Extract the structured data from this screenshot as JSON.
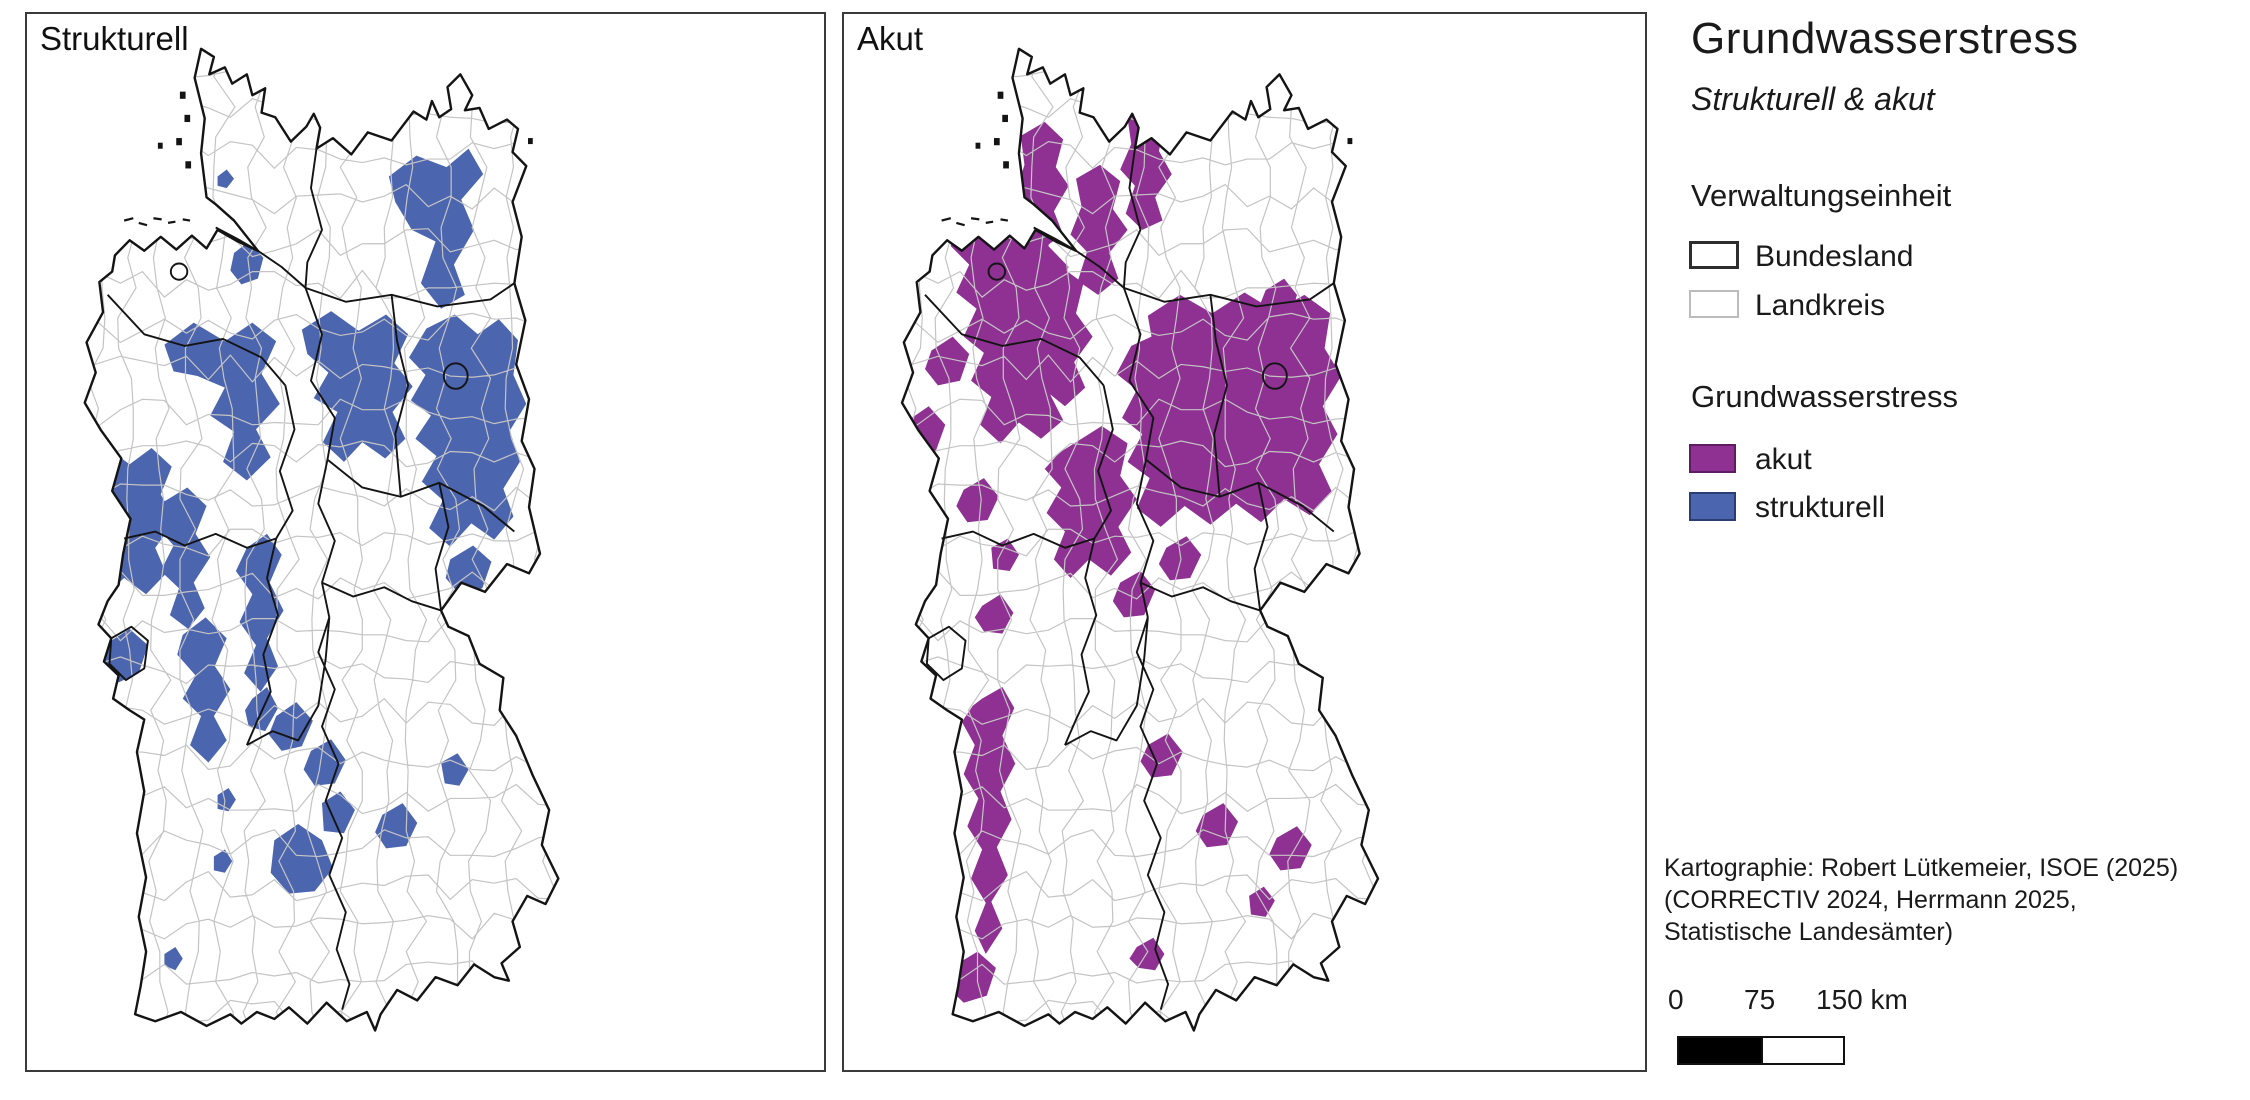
{
  "panels": [
    {
      "label": "Strukturell",
      "color": "#4c65af",
      "regions": [
        "395,150 425,132 458,142 482,126 498,148 474,170 488,196 466,226 478,252 452,264 430,242 446,206 420,196 402,172",
        "226,216 242,206 258,220 252,238 234,243 222,231",
        "208,150 218,144 226,152 218,160 208,158",
        "150,295 182,276 216,292 246,276 272,292 256,320 276,346 250,368 266,392 240,412 214,396 226,370 200,356 216,332 186,322 160,318",
        "300,282 332,266 362,283 392,269 416,286 401,311 421,331 399,353 413,376 391,393 366,379 346,396 323,379 339,353 313,341 329,319 306,303",
        "436,281 467,269 492,286 515,273 536,291 531,321 545,346 527,369 538,396 520,419 531,443 510,463 485,449 462,469 439,453 454,429 431,413 447,391 424,376 441,356 419,343 435,321 417,306",
        "462,480 487,468 507,482 497,505 472,510 457,496",
        "66,400 88,384 112,398 136,384 158,400 146,424 162,446 140,470 152,492 130,510 106,496 84,512 68,494 78,468 60,452 72,430 58,414",
        "150,430 175,418 196,434 184,458 200,478 182,500 194,522 176,540 156,528 166,505 146,490 160,468 142,452",
        "170,545 195,530 218,548 205,572 222,592 204,615 218,636 198,655 178,640 190,615 170,600 184,580 164,562",
        "88,552 112,540 132,554 122,578 100,586 84,570",
        "240,470 262,458 278,476 265,500 280,524 262,548 274,572 255,594 237,578 250,554 232,534 246,510 228,490",
        "246,600 262,590 274,608 260,628 242,624 238,610",
        "272,615 294,603 312,619 300,641 278,645 264,631",
        "310,645 332,635 348,653 336,673 314,675 302,661",
        "270,722 296,708 322,722 334,746 314,766 286,768 266,750",
        "322,690 342,680 358,696 346,716 324,714",
        "388,700 410,690 426,707 414,727 392,729 380,715",
        "452,655 470,647 482,661 472,675 456,673",
        "204,736 216,730 224,740 216,750 204,748",
        "208,683 220,677 228,687 220,697 208,695",
        "150,820 162,814 170,824 162,834 150,830"
      ]
    },
    {
      "label": "Akut",
      "color": "#8e3192",
      "regions": [
        "192,115 218,103 238,118 230,142 244,158 228,180 238,200 216,212 196,200 204,178 186,165 196,140",
        "252,152 278,140 300,154 292,178 308,196 288,216 298,238 276,252 254,240 264,215 246,200 258,176",
        "308,100 330,88 350,102 342,128 356,148 338,168 346,188 324,196 306,182 316,158 300,144 312,122",
        "458,248 478,238 492,252 484,274 462,280 450,264",
        "120,185 150,170 180,182 205,168 230,184 222,210 244,228 228,252 248,272 230,295 246,318 224,338 238,360 214,376 190,362 170,380 148,364 160,340 138,326 152,302 130,288 144,264 122,250 136,226 116,210",
        "210,240 236,228 260,242 252,268 270,288 250,310 262,332 240,348 218,334 228,308 206,294 220,268",
        "330,270 365,252 400,268 435,250 468,266 500,252 528,268 522,298 540,322 520,348 536,372 516,398 530,422 506,442 478,428 453,448 426,432 398,450 370,434 344,452 318,436 332,410 308,396 324,372 302,358 318,334 296,320 312,296 334,288",
        "250,380 280,365 308,380 300,408 318,428 298,452 312,474 290,494 266,480 246,496 228,480 240,456 220,440 236,418 218,402 234,388",
        "300,500 322,490 338,506 326,528 304,530 292,516",
        "350,470 372,460 388,476 376,496 354,498 342,484",
        "95,300 118,288 136,303 126,326 102,330 88,316",
        "70,360 92,348 110,364 100,386 76,390 62,376",
        "130,420 152,410 168,426 156,446 134,448 122,434",
        "160,470 178,462 190,476 180,490 162,488",
        "150,520 170,510 184,526 172,544 152,542 142,530",
        "150,600 172,590 185,608 172,632 186,656 170,680 182,704 166,728 178,752 160,775 172,798 154,820 142,800 154,776 138,755 150,730 134,710 146,686 130,665 142,640 128,620 140,606",
        "120,830 145,818 165,832 155,856 130,862 112,848",
        "330,640 352,630 368,646 356,666 334,668 322,654",
        "318,814 336,806 348,820 338,834 320,832 310,824",
        "390,700 412,690 428,706 416,726 394,728 382,714",
        "470,720 492,710 508,726 496,746 474,748 462,734",
        "440,770 456,762 468,774 458,788 442,786"
      ]
    }
  ],
  "sidebar": {
    "title": "Grundwasserstress",
    "subtitle": "Strukturell & akut",
    "admin_legend": {
      "heading": "Verwaltungseinheit",
      "items": [
        {
          "label": "Bundesland",
          "stroke": "#2e2e2e"
        },
        {
          "label": "Landkreis",
          "stroke": "#bcbcbc"
        }
      ]
    },
    "stress_legend": {
      "heading": "Grundwasserstress",
      "items": [
        {
          "label": "akut",
          "color": "#8e3192"
        },
        {
          "label": "strukturell",
          "color": "#4c65af"
        }
      ]
    },
    "attribution": [
      "Kartographie: Robert Lütkemeier, ISOE (2025)",
      "(CORRECTIV 2024, Herrmann 2025,",
      "Statistische Landesämter)"
    ],
    "scalebar": {
      "tick0": "0",
      "tick1": "75",
      "tick2": "150 km"
    }
  }
}
